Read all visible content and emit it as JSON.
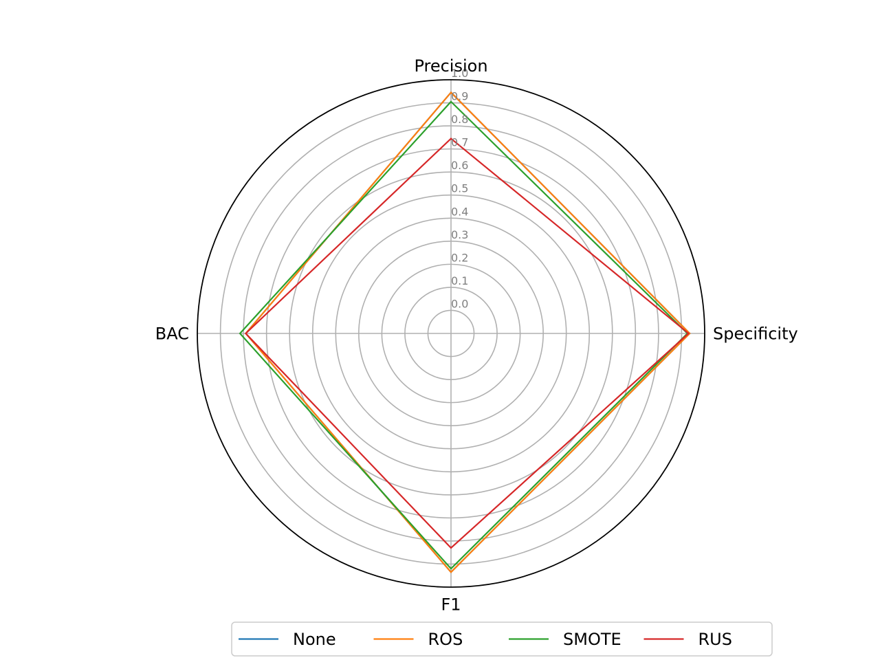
{
  "chart_data": {
    "type": "radar",
    "axes": [
      "Precision",
      "Specificity",
      "F1",
      "BAC"
    ],
    "r_ticks": [
      0.0,
      0.1,
      0.2,
      0.3,
      0.4,
      0.5,
      0.6,
      0.7,
      0.8,
      0.9,
      1.0
    ],
    "r_tick_labels": [
      "0.0",
      "0.1",
      "0.2",
      "0.3",
      "0.4",
      "0.5",
      "0.6",
      "0.7",
      "0.8",
      "0.9",
      "1.0"
    ],
    "rlim": [
      -0.1,
      1.0
    ],
    "grid": true,
    "legend_position": "bottom",
    "series": [
      {
        "name": "None",
        "color": "#1f77b4",
        "values": [
          0.945,
          0.935,
          0.935,
          0.79
        ]
      },
      {
        "name": "ROS",
        "color": "#ff7f0e",
        "values": [
          0.945,
          0.935,
          0.935,
          0.79
        ]
      },
      {
        "name": "SMOTE",
        "color": "#2ca02c",
        "values": [
          0.905,
          0.925,
          0.92,
          0.815
        ]
      },
      {
        "name": "RUS",
        "color": "#d62728",
        "values": [
          0.745,
          0.93,
          0.83,
          0.79
        ]
      }
    ]
  }
}
